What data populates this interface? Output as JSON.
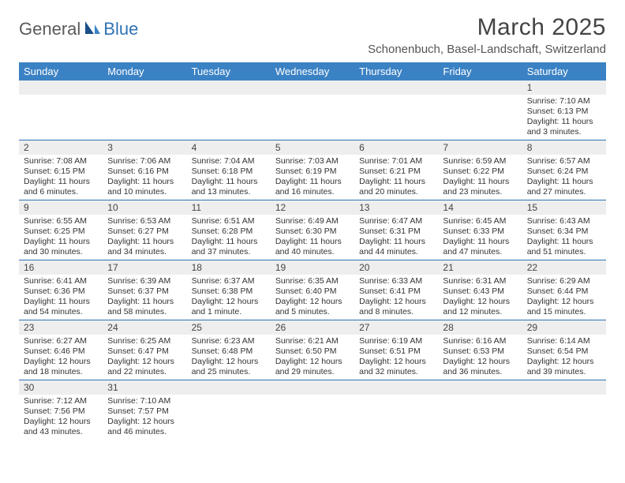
{
  "logo": {
    "part1": "General",
    "part2": "Blue"
  },
  "title": "March 2025",
  "location": "Schonenbuch, Basel-Landschaft, Switzerland",
  "colors": {
    "header_bg": "#3b82c4",
    "header_text": "#ffffff",
    "grid_line": "#2f73b5",
    "daynum_bg": "#eeeeee",
    "text": "#333333",
    "logo_gray": "#5a5a5a",
    "logo_blue": "#2f73b5",
    "page_bg": "#ffffff"
  },
  "weekdays": [
    "Sunday",
    "Monday",
    "Tuesday",
    "Wednesday",
    "Thursday",
    "Friday",
    "Saturday"
  ],
  "weeks": [
    [
      null,
      null,
      null,
      null,
      null,
      null,
      {
        "n": "1",
        "sr": "Sunrise: 7:10 AM",
        "ss": "Sunset: 6:13 PM",
        "dl": "Daylight: 11 hours and 3 minutes."
      }
    ],
    [
      {
        "n": "2",
        "sr": "Sunrise: 7:08 AM",
        "ss": "Sunset: 6:15 PM",
        "dl": "Daylight: 11 hours and 6 minutes."
      },
      {
        "n": "3",
        "sr": "Sunrise: 7:06 AM",
        "ss": "Sunset: 6:16 PM",
        "dl": "Daylight: 11 hours and 10 minutes."
      },
      {
        "n": "4",
        "sr": "Sunrise: 7:04 AM",
        "ss": "Sunset: 6:18 PM",
        "dl": "Daylight: 11 hours and 13 minutes."
      },
      {
        "n": "5",
        "sr": "Sunrise: 7:03 AM",
        "ss": "Sunset: 6:19 PM",
        "dl": "Daylight: 11 hours and 16 minutes."
      },
      {
        "n": "6",
        "sr": "Sunrise: 7:01 AM",
        "ss": "Sunset: 6:21 PM",
        "dl": "Daylight: 11 hours and 20 minutes."
      },
      {
        "n": "7",
        "sr": "Sunrise: 6:59 AM",
        "ss": "Sunset: 6:22 PM",
        "dl": "Daylight: 11 hours and 23 minutes."
      },
      {
        "n": "8",
        "sr": "Sunrise: 6:57 AM",
        "ss": "Sunset: 6:24 PM",
        "dl": "Daylight: 11 hours and 27 minutes."
      }
    ],
    [
      {
        "n": "9",
        "sr": "Sunrise: 6:55 AM",
        "ss": "Sunset: 6:25 PM",
        "dl": "Daylight: 11 hours and 30 minutes."
      },
      {
        "n": "10",
        "sr": "Sunrise: 6:53 AM",
        "ss": "Sunset: 6:27 PM",
        "dl": "Daylight: 11 hours and 34 minutes."
      },
      {
        "n": "11",
        "sr": "Sunrise: 6:51 AM",
        "ss": "Sunset: 6:28 PM",
        "dl": "Daylight: 11 hours and 37 minutes."
      },
      {
        "n": "12",
        "sr": "Sunrise: 6:49 AM",
        "ss": "Sunset: 6:30 PM",
        "dl": "Daylight: 11 hours and 40 minutes."
      },
      {
        "n": "13",
        "sr": "Sunrise: 6:47 AM",
        "ss": "Sunset: 6:31 PM",
        "dl": "Daylight: 11 hours and 44 minutes."
      },
      {
        "n": "14",
        "sr": "Sunrise: 6:45 AM",
        "ss": "Sunset: 6:33 PM",
        "dl": "Daylight: 11 hours and 47 minutes."
      },
      {
        "n": "15",
        "sr": "Sunrise: 6:43 AM",
        "ss": "Sunset: 6:34 PM",
        "dl": "Daylight: 11 hours and 51 minutes."
      }
    ],
    [
      {
        "n": "16",
        "sr": "Sunrise: 6:41 AM",
        "ss": "Sunset: 6:36 PM",
        "dl": "Daylight: 11 hours and 54 minutes."
      },
      {
        "n": "17",
        "sr": "Sunrise: 6:39 AM",
        "ss": "Sunset: 6:37 PM",
        "dl": "Daylight: 11 hours and 58 minutes."
      },
      {
        "n": "18",
        "sr": "Sunrise: 6:37 AM",
        "ss": "Sunset: 6:38 PM",
        "dl": "Daylight: 12 hours and 1 minute."
      },
      {
        "n": "19",
        "sr": "Sunrise: 6:35 AM",
        "ss": "Sunset: 6:40 PM",
        "dl": "Daylight: 12 hours and 5 minutes."
      },
      {
        "n": "20",
        "sr": "Sunrise: 6:33 AM",
        "ss": "Sunset: 6:41 PM",
        "dl": "Daylight: 12 hours and 8 minutes."
      },
      {
        "n": "21",
        "sr": "Sunrise: 6:31 AM",
        "ss": "Sunset: 6:43 PM",
        "dl": "Daylight: 12 hours and 12 minutes."
      },
      {
        "n": "22",
        "sr": "Sunrise: 6:29 AM",
        "ss": "Sunset: 6:44 PM",
        "dl": "Daylight: 12 hours and 15 minutes."
      }
    ],
    [
      {
        "n": "23",
        "sr": "Sunrise: 6:27 AM",
        "ss": "Sunset: 6:46 PM",
        "dl": "Daylight: 12 hours and 18 minutes."
      },
      {
        "n": "24",
        "sr": "Sunrise: 6:25 AM",
        "ss": "Sunset: 6:47 PM",
        "dl": "Daylight: 12 hours and 22 minutes."
      },
      {
        "n": "25",
        "sr": "Sunrise: 6:23 AM",
        "ss": "Sunset: 6:48 PM",
        "dl": "Daylight: 12 hours and 25 minutes."
      },
      {
        "n": "26",
        "sr": "Sunrise: 6:21 AM",
        "ss": "Sunset: 6:50 PM",
        "dl": "Daylight: 12 hours and 29 minutes."
      },
      {
        "n": "27",
        "sr": "Sunrise: 6:19 AM",
        "ss": "Sunset: 6:51 PM",
        "dl": "Daylight: 12 hours and 32 minutes."
      },
      {
        "n": "28",
        "sr": "Sunrise: 6:16 AM",
        "ss": "Sunset: 6:53 PM",
        "dl": "Daylight: 12 hours and 36 minutes."
      },
      {
        "n": "29",
        "sr": "Sunrise: 6:14 AM",
        "ss": "Sunset: 6:54 PM",
        "dl": "Daylight: 12 hours and 39 minutes."
      }
    ],
    [
      {
        "n": "30",
        "sr": "Sunrise: 7:12 AM",
        "ss": "Sunset: 7:56 PM",
        "dl": "Daylight: 12 hours and 43 minutes."
      },
      {
        "n": "31",
        "sr": "Sunrise: 7:10 AM",
        "ss": "Sunset: 7:57 PM",
        "dl": "Daylight: 12 hours and 46 minutes."
      },
      null,
      null,
      null,
      null,
      null
    ]
  ]
}
